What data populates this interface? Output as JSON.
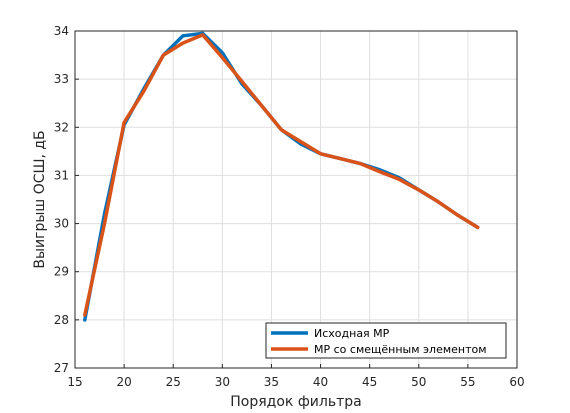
{
  "chart_data": {
    "type": "line",
    "xlabel": "Порядок фильтра",
    "ylabel": "Выигрыш ОСШ, дБ",
    "xlim": [
      15,
      60
    ],
    "ylim": [
      27,
      34
    ],
    "xticks": [
      15,
      20,
      25,
      30,
      35,
      40,
      45,
      50,
      55,
      60
    ],
    "yticks": [
      27,
      28,
      29,
      30,
      31,
      32,
      33,
      34
    ],
    "grid": true,
    "legend_position": "bottom-right",
    "series": [
      {
        "name": "Исходная МР",
        "color": "#0072bd",
        "x": [
          16,
          18,
          20,
          22,
          24,
          26,
          28,
          30,
          32,
          34,
          36,
          38,
          40,
          42,
          44,
          46,
          48,
          50,
          52,
          54,
          56
        ],
        "y": [
          28.0,
          30.2,
          32.05,
          32.8,
          33.5,
          33.9,
          33.95,
          33.55,
          32.9,
          32.45,
          31.95,
          31.65,
          31.45,
          31.35,
          31.25,
          31.12,
          30.95,
          30.7,
          30.45,
          30.17,
          29.92
        ]
      },
      {
        "name": "МР со смещённым элементом",
        "color": "#d95319",
        "x": [
          16,
          18,
          20,
          22,
          24,
          26,
          28,
          30,
          32,
          34,
          36,
          38,
          40,
          42,
          44,
          46,
          48,
          50,
          52,
          54,
          56
        ],
        "y": [
          28.1,
          30.0,
          32.1,
          32.75,
          33.5,
          33.75,
          33.92,
          33.45,
          32.95,
          32.45,
          31.95,
          31.7,
          31.45,
          31.35,
          31.25,
          31.08,
          30.92,
          30.7,
          30.45,
          30.17,
          29.92
        ]
      }
    ]
  }
}
